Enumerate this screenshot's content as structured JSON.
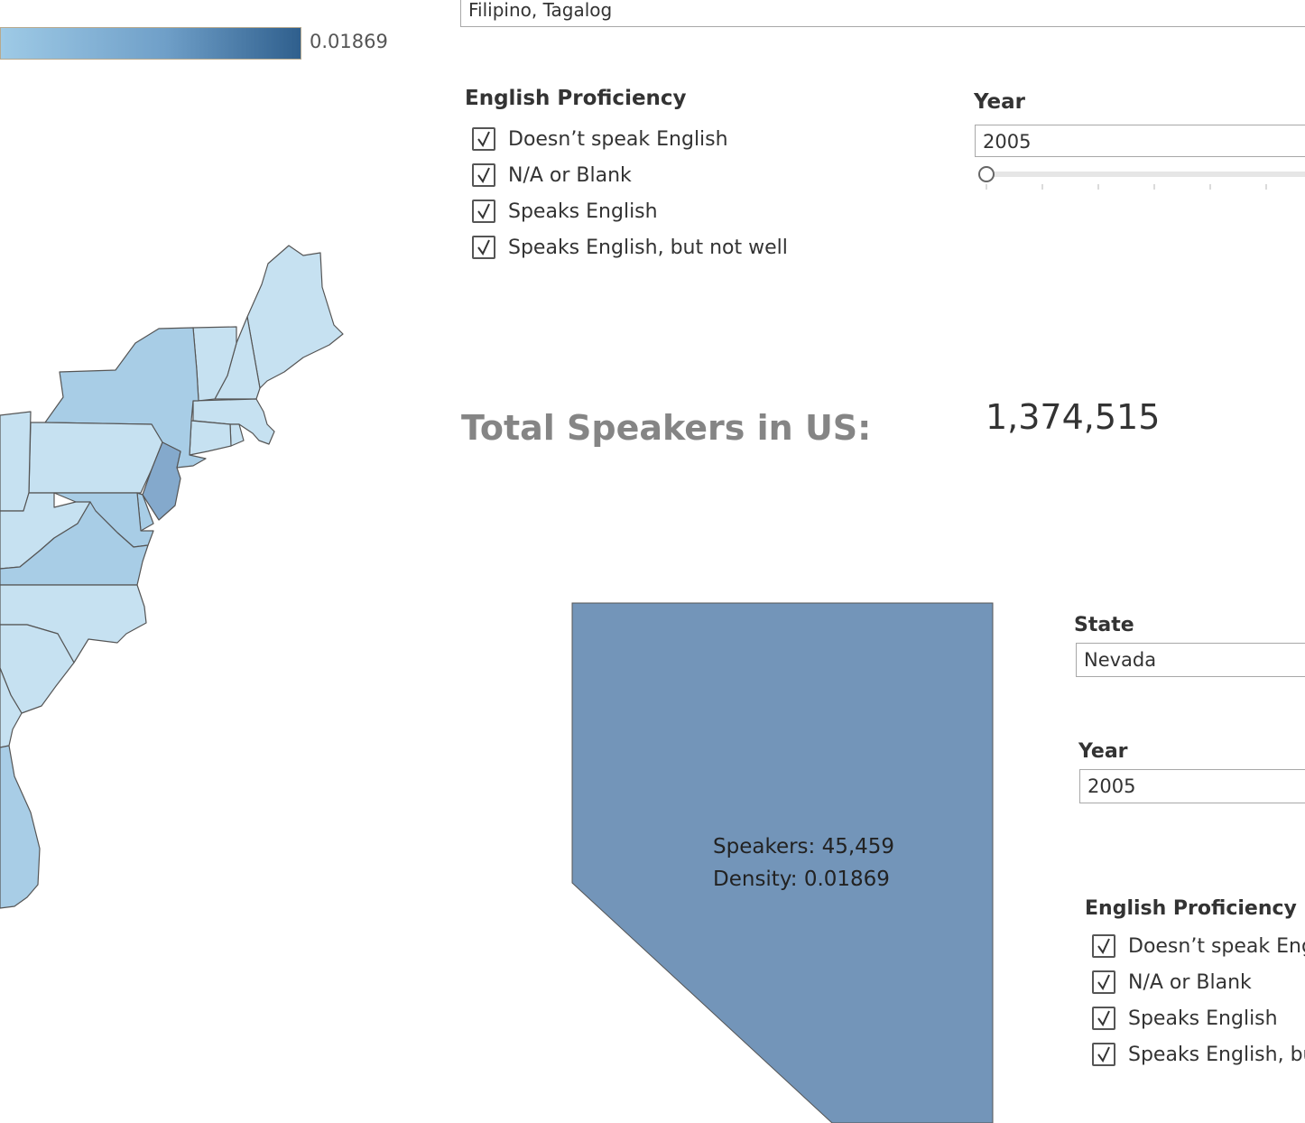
{
  "legend": {
    "max_value": "0.01869",
    "color_low": "#9ecae6",
    "color_high": "#2f5f8d"
  },
  "language_filter": {
    "selected": "Filipino, Tagalog"
  },
  "english_proficiency": {
    "title": "English Proficiency",
    "options": [
      {
        "label": "Doesn’t speak English",
        "checked": true
      },
      {
        "label": "N/A or Blank",
        "checked": true
      },
      {
        "label": "Speaks English",
        "checked": true
      },
      {
        "label": "Speaks English, but not well",
        "checked": true
      }
    ]
  },
  "year_filter": {
    "title": "Year",
    "value": "2005"
  },
  "total": {
    "label": "Total Speakers in US:",
    "value": "1,374,515"
  },
  "state_detail": {
    "name": "Nevada",
    "speakers_line": "Speakers: 45,459",
    "density_line": "Density: 0.01869",
    "fill_color": "#7395b9"
  },
  "state_filter": {
    "title": "State",
    "value": "Nevada"
  },
  "year_filter_2": {
    "title": "Year",
    "value": "2005"
  },
  "english_proficiency_2": {
    "title": "English Proficiency",
    "options": [
      {
        "label": "Doesn’t speak English",
        "checked": true
      },
      {
        "label": "N/A or Blank",
        "checked": true
      },
      {
        "label": "Speaks English",
        "checked": true
      },
      {
        "label": "Speaks English, but not well",
        "checked": true
      }
    ]
  },
  "map": {
    "states": [
      "Maine",
      "New Hampshire",
      "Vermont",
      "Massachusetts",
      "Rhode Island",
      "Connecticut",
      "New York",
      "New Jersey",
      "Pennsylvania",
      "Delaware",
      "Maryland",
      "West Virginia",
      "Virginia",
      "North Carolina",
      "South Carolina",
      "Georgia",
      "Florida",
      "Ohio"
    ],
    "color_light": "#c6e1f1",
    "color_mid": "#a8cde6",
    "color_dark": "#84a9cc",
    "border_color": "#555555"
  }
}
